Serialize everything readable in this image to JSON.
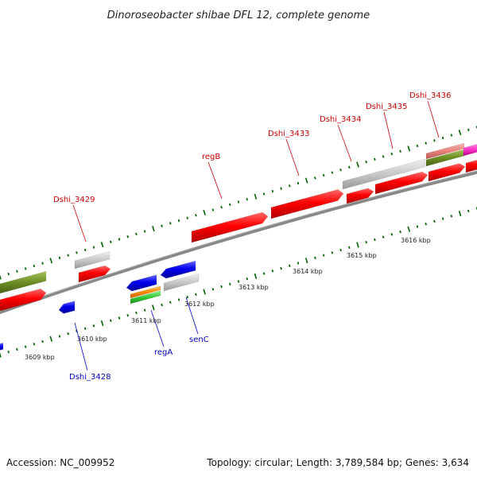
{
  "title": "Dinoroseobacter shibae DFL 12, complete genome",
  "footer": {
    "accession": "Accession: NC_009952",
    "summary": "Topology: circular; Length: 3,789,584 bp; Genes: 3,634"
  },
  "scale": {
    "unit": "kbp",
    "tick_labels": [
      "3609 kbp",
      "3610 kbp",
      "3611 kbp",
      "3612 kbp",
      "3613 kbp",
      "3614 kbp",
      "3615 kbp",
      "3616 kbp"
    ]
  },
  "gene_labels": {
    "forward": [
      "Dshi_3429",
      "regB",
      "Dshi_3433",
      "Dshi_3434",
      "Dshi_3435",
      "Dshi_3436"
    ],
    "reverse": [
      "Dshi_3428",
      "regA",
      "senC"
    ]
  },
  "colors": {
    "cds": "#ff0000",
    "cds_reverse": "#0000ee",
    "gene": "#bbbbbb",
    "olive": "#6b8e23",
    "green": "#33cc33",
    "orange": "#ff8c00",
    "pink": "#ff33cc",
    "salmon": "#e8827a",
    "backbone": "#888888",
    "tick": "#006400",
    "forward_label": "#cc0000",
    "reverse_label": "#0000cc"
  }
}
